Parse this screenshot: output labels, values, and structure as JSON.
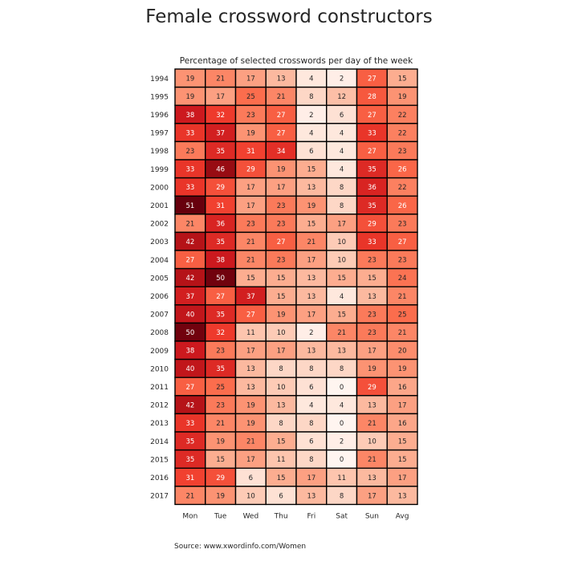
{
  "title": "Female crossword constructors",
  "source": "Source: www.xwordinfo.com/Women",
  "chart_data": {
    "type": "heatmap",
    "title": "Percentage of selected crosswords per day of the week",
    "columns": [
      "Mon",
      "Tue",
      "Wed",
      "Thu",
      "Fri",
      "Sat",
      "Sun",
      "Avg"
    ],
    "rows": [
      "1994",
      "1995",
      "1996",
      "1997",
      "1998",
      "1999",
      "2000",
      "2001",
      "2002",
      "2003",
      "2004",
      "2005",
      "2006",
      "2007",
      "2008",
      "2009",
      "2010",
      "2011",
      "2012",
      "2013",
      "2014",
      "2015",
      "2016",
      "2017"
    ],
    "values": [
      [
        19,
        21,
        17,
        13,
        4,
        2,
        27,
        15
      ],
      [
        19,
        17,
        25,
        21,
        8,
        12,
        28,
        19
      ],
      [
        38,
        32,
        23,
        27,
        2,
        6,
        27,
        22
      ],
      [
        33,
        37,
        19,
        27,
        4,
        4,
        33,
        22
      ],
      [
        23,
        35,
        31,
        34,
        6,
        4,
        27,
        23
      ],
      [
        33,
        46,
        29,
        19,
        15,
        4,
        35,
        26
      ],
      [
        33,
        29,
        17,
        17,
        13,
        8,
        36,
        22
      ],
      [
        51,
        31,
        17,
        23,
        19,
        8,
        35,
        26
      ],
      [
        21,
        36,
        23,
        23,
        15,
        17,
        29,
        23
      ],
      [
        42,
        35,
        21,
        27,
        21,
        10,
        33,
        27
      ],
      [
        27,
        38,
        21,
        23,
        17,
        10,
        23,
        23
      ],
      [
        42,
        50,
        15,
        15,
        13,
        15,
        15,
        24
      ],
      [
        37,
        27,
        37,
        15,
        13,
        4,
        13,
        21
      ],
      [
        40,
        35,
        27,
        19,
        17,
        15,
        23,
        25
      ],
      [
        50,
        32,
        11,
        10,
        2,
        21,
        23,
        21
      ],
      [
        38,
        23,
        17,
        17,
        13,
        13,
        17,
        20
      ],
      [
        40,
        35,
        13,
        8,
        8,
        8,
        19,
        19
      ],
      [
        27,
        25,
        13,
        10,
        6,
        0,
        29,
        16
      ],
      [
        42,
        23,
        19,
        13,
        4,
        4,
        13,
        17
      ],
      [
        33,
        21,
        19,
        8,
        8,
        0,
        21,
        16
      ],
      [
        35,
        19,
        21,
        15,
        6,
        2,
        10,
        15
      ],
      [
        35,
        15,
        17,
        11,
        8,
        0,
        21,
        15
      ],
      [
        31,
        29,
        6,
        15,
        17,
        11,
        13,
        17
      ],
      [
        21,
        19,
        10,
        6,
        13,
        8,
        17,
        13
      ]
    ],
    "color_scale": "Reds",
    "value_range": [
      0,
      51
    ],
    "legend": "none"
  }
}
